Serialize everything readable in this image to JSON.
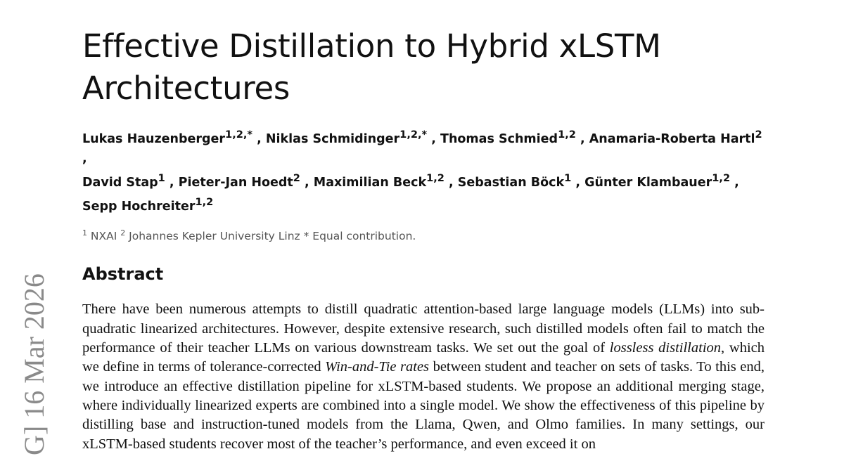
{
  "margin_stamp": "G]  16 Mar 2026",
  "paper": {
    "title_line1": "Effective Distillation to Hybrid xLSTM",
    "title_line2": "Architectures",
    "authors": [
      {
        "name": "Lukas Hauzenberger",
        "aff": "1,2,*"
      },
      {
        "name": "Niklas Schmidinger",
        "aff": "1,2,*"
      },
      {
        "name": "Thomas Schmied",
        "aff": "1,2"
      },
      {
        "name": "Anamaria-Roberta Hartl",
        "aff": "2"
      },
      {
        "name": "David Stap",
        "aff": "1"
      },
      {
        "name": "Pieter-Jan Hoedt",
        "aff": "2"
      },
      {
        "name": "Maximilian Beck",
        "aff": "1,2"
      },
      {
        "name": "Sebastian Böck",
        "aff": "1"
      },
      {
        "name": "Günter Klambauer",
        "aff": "1,2"
      },
      {
        "name": "Sepp Hochreiter",
        "aff": "1,2"
      }
    ],
    "separator": " , ",
    "affiliations": {
      "a1_mark": "1",
      "a1_text": " NXAI ",
      "a2_mark": "2",
      "a2_text": " Johannes Kepler University Linz ",
      "eq_mark": "*",
      "eq_text": " Equal contribution."
    },
    "abstract_heading": "Abstract",
    "abstract": {
      "p1": "There have been numerous attempts to distill quadratic attention-based large language models (LLMs) into sub-quadratic linearized architectures. However, despite extensive research, such distilled models often fail to match the performance of their teacher LLMs on various downstream tasks. We set out the goal of ",
      "em1": "lossless distillation",
      "p2": ", which we define in terms of tolerance-corrected ",
      "em2": "Win-and-Tie rates",
      "p3": " between student and teacher on sets of tasks.  To this end, we introduce an effective distillation pipeline for xLSTM-based students.  We propose an additional merging stage, where individually linearized experts are combined into a single model.  We show the effectiveness of this pipeline by distilling base and instruction-tuned models from the Llama, Qwen, and Olmo families.  In many settings, our xLSTM-based students recover most of the teacher’s performance, and even exceed it on"
    }
  }
}
